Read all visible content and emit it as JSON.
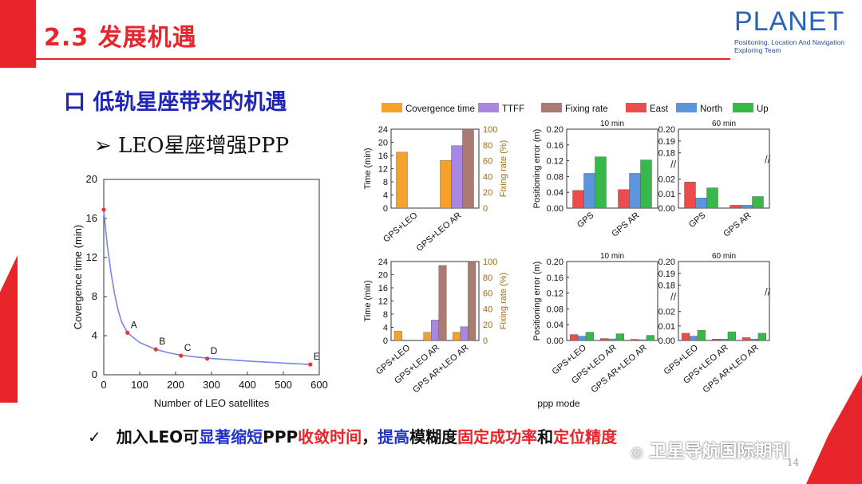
{
  "slide": {
    "title": "2.3 发展机遇",
    "heading": "口 低轨星座带来的机遇",
    "subheading": "➢ LEO星座增强PPP",
    "conclusion": {
      "check": "✓",
      "p1": "加入LEO可",
      "p2": "显著缩短",
      "p3": "PPP",
      "p4": "收敛时间",
      "p5": "，",
      "p6": "提高",
      "p7": "模糊度",
      "p8": "固定成功率",
      "p9": "和",
      "p10": "定位精度"
    },
    "page_number": "14",
    "watermark": "卫星导航国际期刊"
  },
  "logo": {
    "name": "PLANET",
    "tagline1": "Positioning, Location And Navigation",
    "tagline2": "Exploring Team"
  },
  "colors": {
    "accent": "#e8252b",
    "heading_blue": "#1f26b5",
    "orange": "#f7a12d",
    "purple": "#a886e2",
    "brown": "#a97b72",
    "east": "#ec4c4c",
    "north": "#5c95dc",
    "up": "#38b84a",
    "line": "#7a86e8"
  },
  "chart_data": [
    {
      "type": "line",
      "xlabel": "Number of LEO satellites",
      "ylabel": "Covergence time (min)",
      "xlim": [
        0,
        600
      ],
      "ylim": [
        0,
        20
      ],
      "xticks": [
        "0",
        "100",
        "200",
        "300",
        "400",
        "500",
        "600"
      ],
      "yticks": [
        "0",
        "4",
        "8",
        "12",
        "16",
        "20"
      ],
      "curve": [
        [
          0,
          16.8
        ],
        [
          10,
          13.2
        ],
        [
          20,
          10.5
        ],
        [
          30,
          8.3
        ],
        [
          40,
          6.6
        ],
        [
          50,
          5.4
        ],
        [
          66,
          4.3
        ],
        [
          100,
          3.3
        ],
        [
          145,
          2.6
        ],
        [
          180,
          2.25
        ],
        [
          215,
          2.0
        ],
        [
          250,
          1.85
        ],
        [
          288,
          1.7
        ],
        [
          400,
          1.4
        ],
        [
          500,
          1.2
        ],
        [
          575,
          1.05
        ]
      ],
      "points": [
        {
          "x": 0,
          "y": 16.9,
          "label": ""
        },
        {
          "x": 66,
          "y": 4.3,
          "label": "A"
        },
        {
          "x": 145,
          "y": 2.6,
          "label": "B"
        },
        {
          "x": 215,
          "y": 1.95,
          "label": "C"
        },
        {
          "x": 288,
          "y": 1.65,
          "label": "D"
        },
        {
          "x": 575,
          "y": 1.05,
          "label": "E"
        }
      ]
    },
    {
      "type": "bar",
      "legend": [
        "Covergence time",
        "TTFF",
        "Fixing rate",
        "East",
        "North",
        "Up"
      ],
      "panels": [
        {
          "id": "time-top",
          "ylabel": "Time (min)",
          "y2label": "Fixing rate (%)",
          "yticks": [
            "0",
            "4",
            "8",
            "12",
            "16",
            "20",
            "24"
          ],
          "y2ticks": [
            "0",
            "20",
            "40",
            "60",
            "80",
            "100"
          ],
          "categories": [
            "GPS+LEO",
            "GPS+LEO AR"
          ],
          "series": [
            {
              "name": "Covergence time",
              "values": [
                17,
                14.5
              ]
            },
            {
              "name": "TTFF",
              "values": [
                null,
                19
              ]
            },
            {
              "name": "Fixing rate",
              "values": [
                null,
                100
              ]
            }
          ]
        },
        {
          "id": "time-bottom",
          "ylabel": "Time (min)",
          "y2label": "Fixing rate (%)",
          "yticks": [
            "0",
            "4",
            "8",
            "12",
            "16",
            "20",
            "24"
          ],
          "y2ticks": [
            "0",
            "20",
            "40",
            "60",
            "80",
            "100"
          ],
          "categories": [
            "GPS+LEO",
            "GPS+LEO AR",
            "GPS AR+LEO AR"
          ],
          "series": [
            {
              "name": "Covergence time",
              "values": [
                2.8,
                2.5,
                2.5
              ]
            },
            {
              "name": "TTFF",
              "values": [
                null,
                6.2,
                4.2
              ]
            },
            {
              "name": "Fixing rate",
              "values": [
                null,
                95,
                100
              ]
            }
          ]
        },
        {
          "id": "pos-top-10",
          "title": "10 min",
          "ylabel": "Positioning error (m)",
          "yticks": [
            "0.00",
            "0.04",
            "0.08",
            "0.12",
            "0.16",
            "0.20"
          ],
          "categories": [
            "GPS",
            "GPS AR"
          ],
          "series": [
            {
              "name": "East",
              "values": [
                0.045,
                0.047
              ]
            },
            {
              "name": "North",
              "values": [
                0.088,
                0.088
              ]
            },
            {
              "name": "Up",
              "values": [
                0.13,
                0.122
              ]
            }
          ]
        },
        {
          "id": "pos-top-60",
          "title": "60 min",
          "yticks": [
            "0.00",
            "0.01",
            "0.02",
            "0.18",
            "0.19",
            "0.20"
          ],
          "categories": [
            "GPS",
            "GPS AR"
          ],
          "series": [
            {
              "name": "East",
              "values": [
                0.018,
                0.002
              ]
            },
            {
              "name": "North",
              "values": [
                0.007,
                0.002
              ]
            },
            {
              "name": "Up",
              "values": [
                0.014,
                0.008
              ]
            }
          ]
        },
        {
          "id": "pos-bottom-10",
          "title": "10 min",
          "ylabel": "Positioning error (m)",
          "yticks": [
            "0.00",
            "0.04",
            "0.08",
            "0.12",
            "0.16",
            "0.20"
          ],
          "categories": [
            "GPS+LEO",
            "GPS+LEO AR",
            "GPS AR+LEO AR"
          ],
          "series": [
            {
              "name": "East",
              "values": [
                0.015,
                0.005,
                0.003
              ]
            },
            {
              "name": "North",
              "values": [
                0.011,
                0.004,
                0.002
              ]
            },
            {
              "name": "Up",
              "values": [
                0.021,
                0.017,
                0.013
              ]
            }
          ]
        },
        {
          "id": "pos-bottom-60",
          "title": "60 min",
          "yticks": [
            "0.00",
            "0.01",
            "0.02",
            "0.18",
            "0.19",
            "0.20"
          ],
          "categories": [
            "GPS+LEO",
            "GPS+LEO AR",
            "GPS AR+LEO AR"
          ],
          "series": [
            {
              "name": "East",
              "values": [
                0.005,
                0.001,
                0.002
              ]
            },
            {
              "name": "North",
              "values": [
                0.003,
                0.001,
                0.001
              ]
            },
            {
              "name": "Up",
              "values": [
                0.007,
                0.006,
                0.005
              ]
            }
          ]
        }
      ],
      "xlabel": "ppp mode"
    }
  ]
}
